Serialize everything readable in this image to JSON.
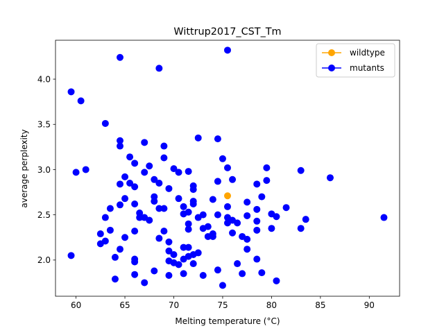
{
  "chart_data": {
    "type": "scatter",
    "title": "Wittrup2017_CST_Tm",
    "xlabel": "Melting temperature (°C)",
    "ylabel": "average perplexity",
    "xlim": [
      57.9,
      93.1
    ],
    "ylim": [
      1.6,
      4.43
    ],
    "xticks": [
      60,
      65,
      70,
      75,
      80,
      85,
      90
    ],
    "yticks": [
      2.0,
      2.5,
      3.0,
      3.5,
      4.0
    ],
    "xtick_labels": [
      "60",
      "65",
      "70",
      "75",
      "80",
      "85",
      "90"
    ],
    "ytick_labels": [
      "2.0",
      "2.5",
      "3.0",
      "3.5",
      "4.0"
    ],
    "legend": {
      "position": "top-right"
    },
    "series": [
      {
        "name": "wildtype",
        "color": "#FFA500",
        "points": [
          [
            75.5,
            2.71
          ]
        ]
      },
      {
        "name": "mutants",
        "color": "#0000FF",
        "points": [
          [
            59.5,
            3.86
          ],
          [
            60.5,
            3.76
          ],
          [
            63.0,
            3.51
          ],
          [
            64.5,
            4.24
          ],
          [
            68.5,
            4.12
          ],
          [
            75.5,
            4.32
          ],
          [
            60.0,
            2.97
          ],
          [
            61.0,
            3.0
          ],
          [
            59.5,
            2.05
          ],
          [
            62.5,
            2.29
          ],
          [
            62.5,
            2.18
          ],
          [
            63.0,
            2.47
          ],
          [
            63.0,
            2.21
          ],
          [
            63.5,
            2.57
          ],
          [
            63.5,
            2.33
          ],
          [
            64.0,
            2.03
          ],
          [
            64.0,
            1.79
          ],
          [
            64.5,
            3.32
          ],
          [
            64.5,
            3.26
          ],
          [
            64.5,
            2.84
          ],
          [
            64.5,
            2.61
          ],
          [
            64.5,
            2.12
          ],
          [
            65.0,
            2.92
          ],
          [
            65.0,
            2.68
          ],
          [
            65.0,
            2.25
          ],
          [
            65.5,
            3.14
          ],
          [
            65.5,
            2.85
          ],
          [
            66.0,
            3.07
          ],
          [
            66.0,
            2.81
          ],
          [
            66.0,
            2.62
          ],
          [
            66.0,
            2.32
          ],
          [
            66.0,
            2.01
          ],
          [
            66.0,
            1.98
          ],
          [
            66.0,
            1.84
          ],
          [
            66.5,
            2.52
          ],
          [
            66.5,
            2.47
          ],
          [
            67.0,
            3.3
          ],
          [
            67.0,
            2.97
          ],
          [
            67.0,
            2.47
          ],
          [
            67.0,
            1.75
          ],
          [
            67.5,
            3.04
          ],
          [
            67.5,
            2.44
          ],
          [
            68.0,
            2.89
          ],
          [
            68.0,
            2.7
          ],
          [
            68.0,
            2.65
          ],
          [
            68.0,
            1.88
          ],
          [
            68.5,
            2.85
          ],
          [
            68.5,
            2.57
          ],
          [
            68.5,
            2.24
          ],
          [
            69.0,
            3.26
          ],
          [
            69.0,
            3.13
          ],
          [
            69.0,
            2.57
          ],
          [
            69.0,
            2.32
          ],
          [
            69.5,
            2.79
          ],
          [
            69.5,
            2.2
          ],
          [
            69.5,
            2.1
          ],
          [
            69.5,
            1.99
          ],
          [
            69.5,
            1.83
          ],
          [
            70.0,
            3.01
          ],
          [
            70.0,
            2.06
          ],
          [
            70.0,
            1.97
          ],
          [
            70.5,
            2.97
          ],
          [
            70.5,
            2.68
          ],
          [
            70.5,
            1.95
          ],
          [
            71.0,
            2.59
          ],
          [
            71.0,
            2.51
          ],
          [
            71.0,
            2.14
          ],
          [
            71.0,
            2.01
          ],
          [
            71.0,
            1.85
          ],
          [
            71.5,
            2.98
          ],
          [
            71.5,
            2.53
          ],
          [
            71.5,
            2.4
          ],
          [
            71.5,
            2.34
          ],
          [
            71.5,
            2.14
          ],
          [
            71.5,
            2.04
          ],
          [
            72.0,
            2.82
          ],
          [
            72.0,
            2.78
          ],
          [
            72.0,
            2.65
          ],
          [
            72.0,
            2.62
          ],
          [
            72.0,
            2.06
          ],
          [
            72.0,
            1.96
          ],
          [
            72.5,
            3.35
          ],
          [
            72.5,
            2.47
          ],
          [
            72.5,
            2.08
          ],
          [
            73.0,
            2.5
          ],
          [
            73.0,
            2.35
          ],
          [
            73.0,
            1.83
          ],
          [
            73.5,
            2.37
          ],
          [
            73.5,
            2.26
          ],
          [
            74.0,
            2.67
          ],
          [
            74.0,
            2.29
          ],
          [
            74.0,
            2.26
          ],
          [
            74.5,
            3.34
          ],
          [
            74.5,
            2.87
          ],
          [
            74.5,
            2.5
          ],
          [
            74.5,
            1.89
          ],
          [
            75.0,
            3.12
          ],
          [
            75.0,
            1.72
          ],
          [
            75.5,
            3.02
          ],
          [
            75.5,
            2.59
          ],
          [
            75.5,
            2.47
          ],
          [
            75.5,
            2.41
          ],
          [
            76.0,
            2.89
          ],
          [
            76.0,
            2.44
          ],
          [
            76.0,
            2.3
          ],
          [
            76.5,
            2.41
          ],
          [
            76.5,
            1.96
          ],
          [
            77.0,
            2.26
          ],
          [
            77.0,
            1.85
          ],
          [
            77.5,
            2.64
          ],
          [
            77.5,
            2.49
          ],
          [
            77.5,
            2.23
          ],
          [
            77.5,
            2.12
          ],
          [
            78.5,
            2.84
          ],
          [
            78.5,
            2.56
          ],
          [
            78.5,
            2.43
          ],
          [
            78.5,
            2.33
          ],
          [
            78.5,
            2.01
          ],
          [
            79.0,
            2.7
          ],
          [
            79.0,
            1.86
          ],
          [
            79.5,
            3.02
          ],
          [
            79.5,
            2.88
          ],
          [
            80.0,
            2.51
          ],
          [
            80.0,
            2.35
          ],
          [
            80.5,
            2.48
          ],
          [
            80.5,
            1.77
          ],
          [
            81.5,
            2.58
          ],
          [
            83.0,
            2.99
          ],
          [
            83.0,
            2.35
          ],
          [
            83.5,
            2.45
          ],
          [
            86.0,
            2.91
          ],
          [
            91.5,
            2.47
          ]
        ]
      }
    ]
  }
}
